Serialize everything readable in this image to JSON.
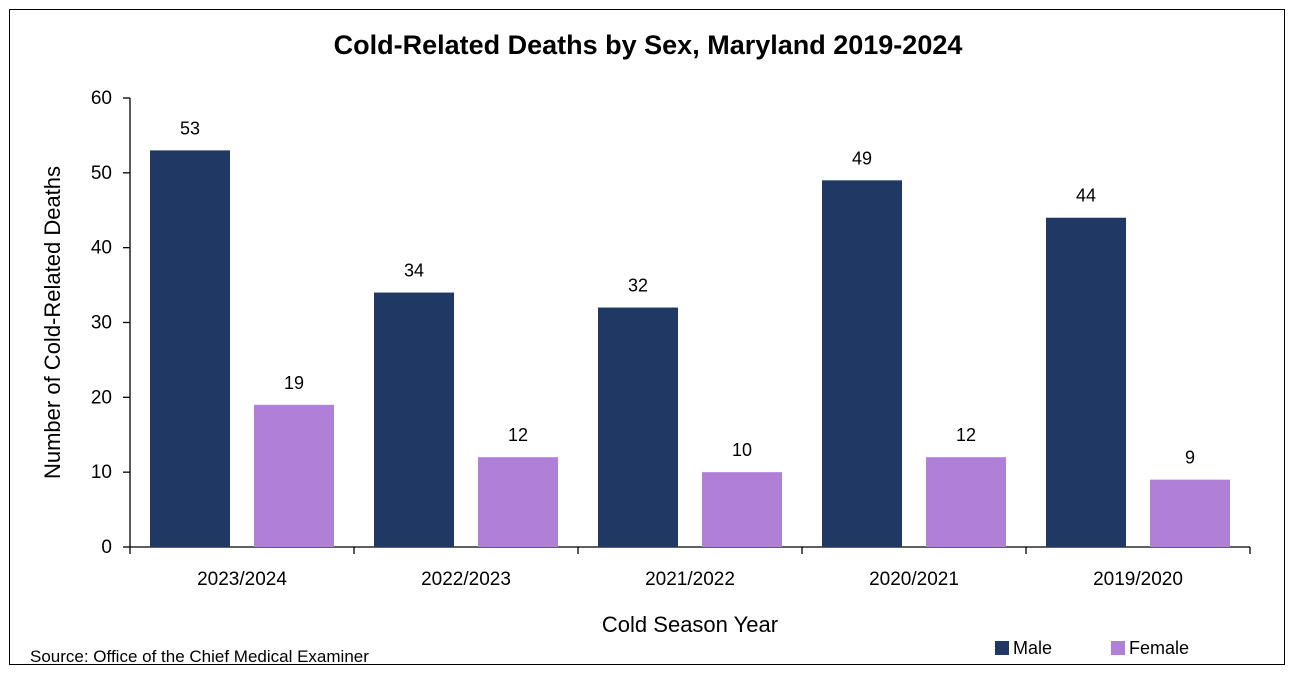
{
  "chart_data": {
    "type": "bar",
    "title": "Cold-Related Deaths by Sex, Maryland 2019-2024",
    "xlabel": "Cold Season Year",
    "ylabel": "Number of Cold-Related Deaths",
    "categories": [
      "2023/2024",
      "2022/2023",
      "2021/2022",
      "2020/2021",
      "2019/2020"
    ],
    "series": [
      {
        "name": "Male",
        "values": [
          53,
          34,
          32,
          49,
          44
        ],
        "color": "#203864"
      },
      {
        "name": "Female",
        "values": [
          19,
          12,
          10,
          12,
          9
        ],
        "color": "#B07FD8"
      }
    ],
    "ylim": [
      0,
      60
    ],
    "yticks": [
      0,
      10,
      20,
      30,
      40,
      50,
      60
    ],
    "grid": false,
    "legend_position": "bottom-right",
    "data_labels": true
  },
  "source": "Source: Office of the Chief Medical Examiner"
}
